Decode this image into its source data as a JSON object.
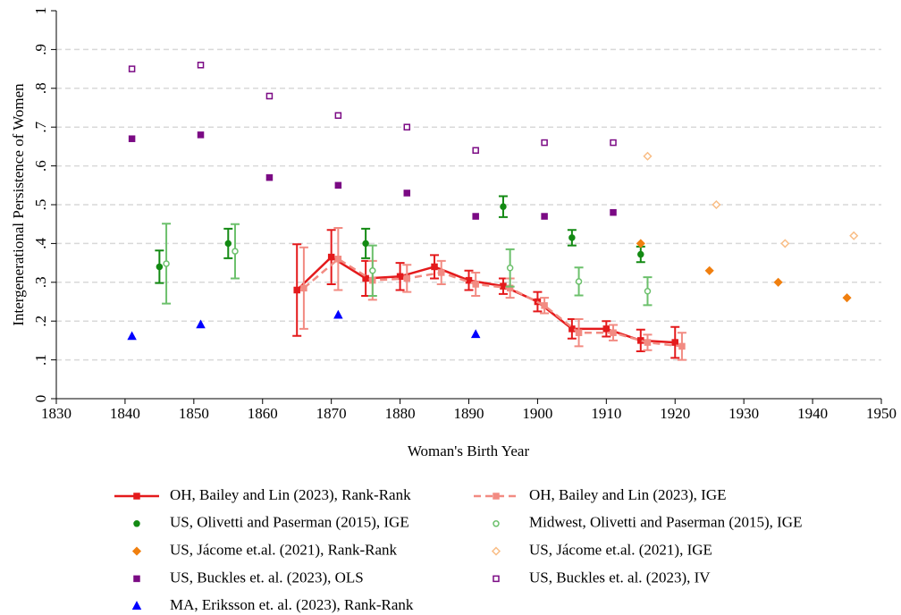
{
  "chart_data": {
    "type": "scatter",
    "xlabel": "Woman's Birth Year",
    "ylabel": "Intergenerational Persistence of Women",
    "xlim": [
      1830,
      1950
    ],
    "xticks": [
      1830,
      1840,
      1850,
      1860,
      1870,
      1880,
      1890,
      1900,
      1910,
      1920,
      1930,
      1940,
      1950
    ],
    "ylim": [
      0,
      1
    ],
    "yticks": [
      0,
      {
        "value": 0.1,
        "label": ".1"
      },
      {
        "value": 0.2,
        "label": ".2"
      },
      {
        "value": 0.3,
        "label": ".3"
      },
      {
        "value": 0.4,
        "label": ".4"
      },
      {
        "value": 0.5,
        "label": ".5"
      },
      {
        "value": 0.6,
        "label": ".6"
      },
      {
        "value": 0.7,
        "label": ".7"
      },
      {
        "value": 0.8,
        "label": ".8"
      },
      {
        "value": 0.9,
        "label": ".9"
      },
      1
    ],
    "grid": true,
    "legend_position": "bottom",
    "legend_columns": 2,
    "series": [
      {
        "name": "OH, Bailey and Lin (2023), Rank-Rank",
        "color": "#e41a1c",
        "marker": "square",
        "filled": true,
        "line": "solid",
        "x": [
          1865,
          1870,
          1875,
          1880,
          1885,
          1890,
          1895,
          1900,
          1905,
          1910,
          1915,
          1920
        ],
        "values": [
          0.28,
          0.365,
          0.31,
          0.315,
          0.34,
          0.305,
          0.29,
          0.25,
          0.18,
          0.18,
          0.15,
          0.145
        ],
        "errors": [
          0.118,
          0.07,
          0.045,
          0.035,
          0.03,
          0.025,
          0.02,
          0.025,
          0.025,
          0.02,
          0.028,
          0.04
        ]
      },
      {
        "name": "OH, Bailey and Lin (2023), IGE",
        "color": "#f28b82",
        "marker": "square",
        "filled": true,
        "line": "dash",
        "x": [
          1866,
          1871,
          1876,
          1881,
          1886,
          1891,
          1896,
          1901,
          1906,
          1911,
          1916,
          1921
        ],
        "values": [
          0.285,
          0.36,
          0.305,
          0.31,
          0.325,
          0.295,
          0.285,
          0.24,
          0.17,
          0.17,
          0.145,
          0.135
        ],
        "errors": [
          0.105,
          0.08,
          0.05,
          0.035,
          0.03,
          0.03,
          0.025,
          0.02,
          0.035,
          0.02,
          0.02,
          0.035
        ]
      },
      {
        "name": "US, Olivetti and Paserman (2015), IGE",
        "color": "#138a13",
        "marker": "circle",
        "filled": true,
        "x": [
          1845,
          1855,
          1875,
          1895,
          1905,
          1915
        ],
        "values": [
          0.34,
          0.4,
          0.4,
          0.495,
          0.415,
          0.372
        ],
        "errors": [
          0.042,
          0.038,
          0.038,
          0.027,
          0.02,
          0.02
        ]
      },
      {
        "name": "Midwest, Olivetti and Paserman (2015), IGE",
        "color": "#6cc06c",
        "marker": "circle",
        "filled": false,
        "x": [
          1846,
          1856,
          1876,
          1896,
          1906,
          1916
        ],
        "values": [
          0.348,
          0.38,
          0.33,
          0.337,
          0.302,
          0.277
        ],
        "errors": [
          0.103,
          0.07,
          0.065,
          0.048,
          0.036,
          0.036
        ]
      },
      {
        "name": "US, Jácome et.al. (2021), Rank-Rank",
        "color": "#f07f0f",
        "marker": "diamond",
        "filled": true,
        "x": [
          1915,
          1925,
          1935,
          1945
        ],
        "values": [
          0.4,
          0.33,
          0.3,
          0.26
        ]
      },
      {
        "name": "US, Jácome et.al. (2021), IGE",
        "color": "#f9bd85",
        "marker": "diamond",
        "filled": false,
        "x": [
          1916,
          1926,
          1936,
          1946
        ],
        "values": [
          0.625,
          0.5,
          0.4,
          0.42
        ]
      },
      {
        "name": "US, Buckles et. al. (2023), OLS",
        "color": "#7b0a84",
        "marker": "square",
        "filled": true,
        "x": [
          1841,
          1851,
          1861,
          1871,
          1881,
          1891,
          1901,
          1911
        ],
        "values": [
          0.67,
          0.68,
          0.57,
          0.55,
          0.53,
          0.47,
          0.47,
          0.48
        ]
      },
      {
        "name": "US, Buckles et. al. (2023), IV",
        "color": "#7b0a84",
        "marker": "square",
        "filled": false,
        "x": [
          1841,
          1851,
          1861,
          1871,
          1881,
          1891,
          1901,
          1911
        ],
        "values": [
          0.85,
          0.86,
          0.78,
          0.73,
          0.7,
          0.64,
          0.66,
          0.66
        ]
      },
      {
        "name": "MA, Eriksson et. al. (2023), Rank-Rank",
        "color": "#0000ff",
        "marker": "triangle",
        "filled": true,
        "x": [
          1841,
          1851,
          1871,
          1891
        ],
        "values": [
          0.16,
          0.19,
          0.215,
          0.165
        ]
      }
    ]
  }
}
